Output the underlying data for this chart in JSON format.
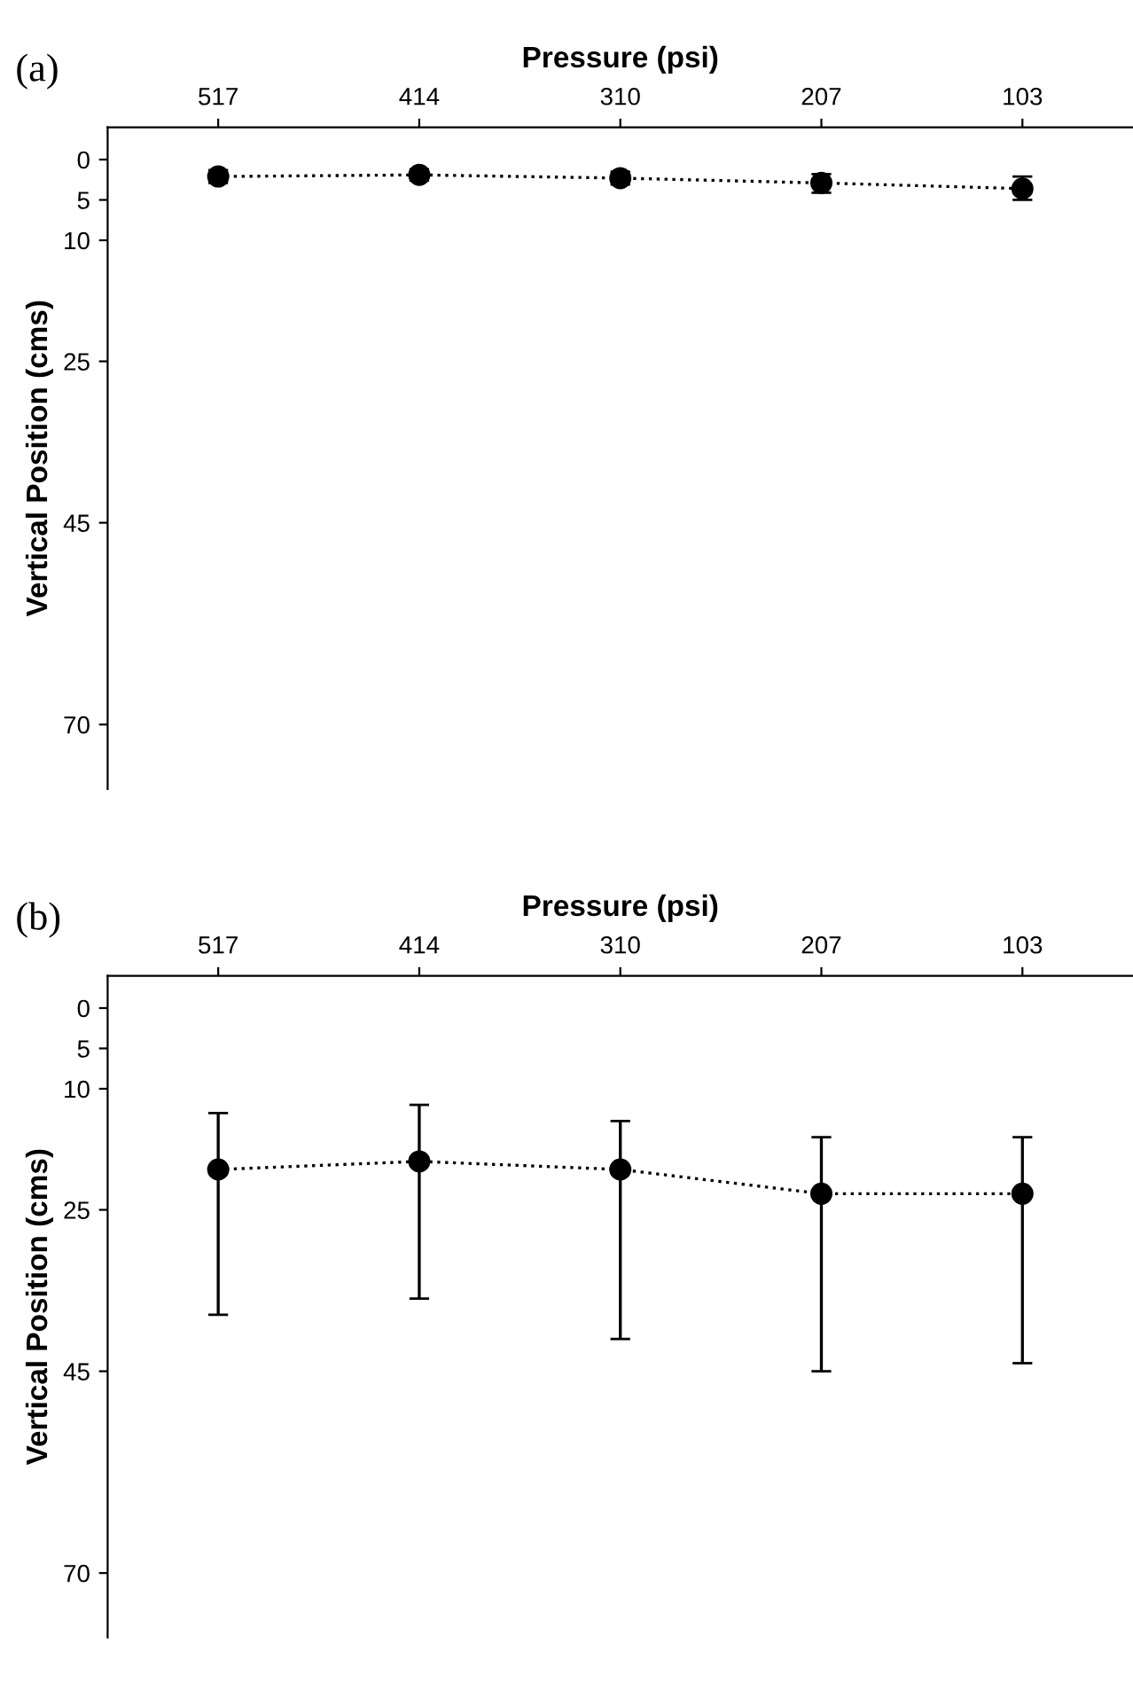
{
  "chart_data": [
    {
      "type": "line",
      "title": "(a)",
      "xlabel": "Pressure (psi)",
      "ylabel": "Vertical Position (cms)",
      "categories": [
        "517",
        "414",
        "310",
        "207",
        "103"
      ],
      "series": [
        {
          "color": "#000000",
          "values": [
            2.1,
            1.9,
            2.3,
            2.9,
            3.6
          ],
          "errors": [
            [
              1.3,
              2.9
            ],
            [
              1.2,
              2.6
            ],
            [
              1.5,
              3.1
            ],
            [
              1.8,
              4.1
            ],
            [
              2.1,
              5
            ]
          ]
        }
      ],
      "ylim": [
        78,
        -4
      ],
      "yticks": [
        0,
        5,
        10,
        25,
        45,
        70
      ],
      "marker": "circle",
      "line_style": "dotted",
      "grid": false,
      "legend": false
    },
    {
      "type": "line",
      "title": "(b)",
      "xlabel": "Pressure (psi)",
      "ylabel": "Vertical Position (cms)",
      "categories": [
        "517",
        "414",
        "310",
        "207",
        "103"
      ],
      "series": [
        {
          "color": "#000000",
          "values": [
            20,
            19,
            20,
            23,
            23
          ],
          "errors": [
            [
              13,
              38
            ],
            [
              12,
              36
            ],
            [
              14,
              41
            ],
            [
              16,
              45
            ],
            [
              16,
              44
            ]
          ]
        }
      ],
      "ylim": [
        78,
        -4
      ],
      "yticks": [
        0,
        5,
        10,
        25,
        45,
        70
      ],
      "marker": "circle",
      "line_style": "dotted",
      "grid": false,
      "legend": false
    }
  ]
}
